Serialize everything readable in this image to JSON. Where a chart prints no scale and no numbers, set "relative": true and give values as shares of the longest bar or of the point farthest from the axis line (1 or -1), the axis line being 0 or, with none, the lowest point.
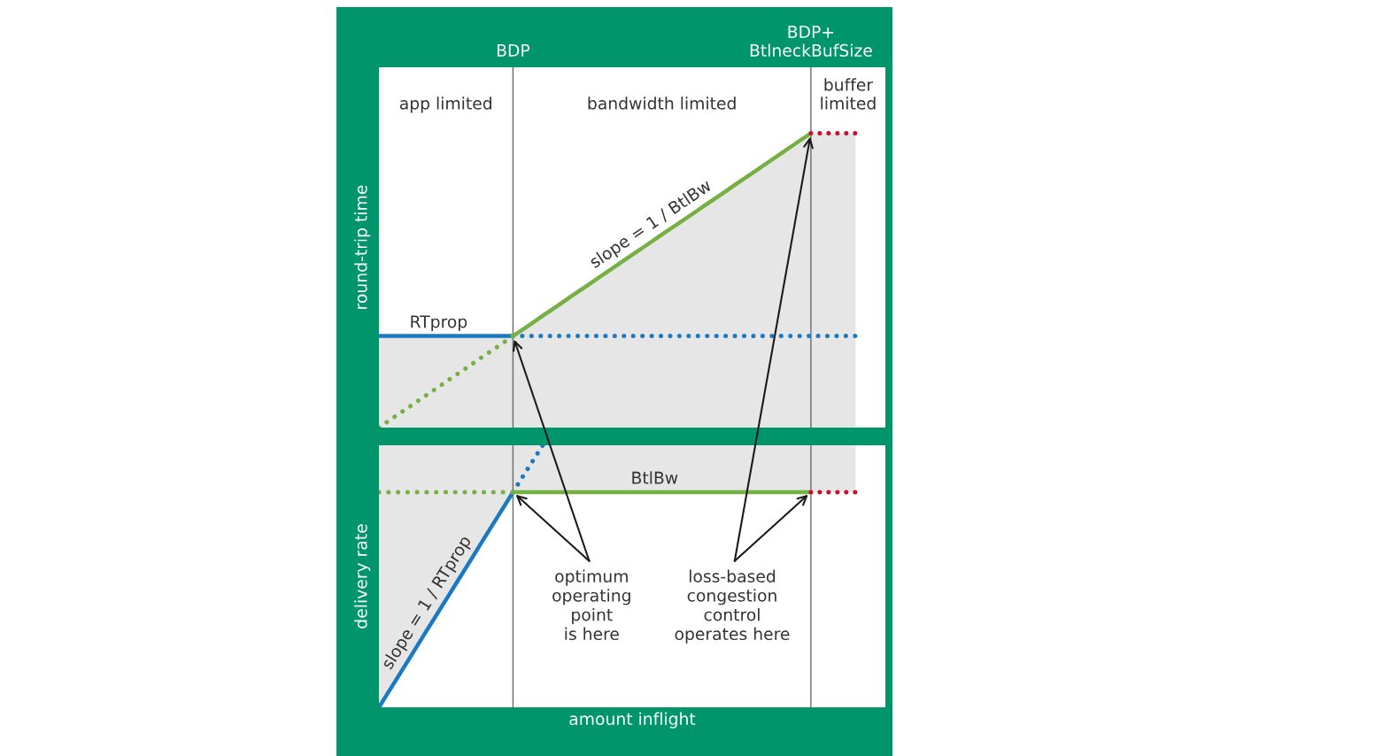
{
  "chart_data": [
    {
      "type": "line",
      "ylabel": "round-trip time",
      "relative": true,
      "tick_labels": "x",
      "grid": "x",
      "categories": [
        null,
        null,
        null,
        null,
        null,
        null,
        null,
        null,
        null,
        "BDP",
        null,
        null,
        null,
        null,
        null,
        null,
        null,
        null,
        null,
        null,
        null,
        null,
        null,
        null,
        null,
        null,
        null,
        null,
        null,
        "BDP+\nBtlneckBufSize",
        null,
        null,
        null,
        null,
        null
      ],
      "series": [
        {
          "name": "RTprop",
          "color": "#1a79c0",
          "line_style": "solid",
          "values": [
            0.311,
            0.311,
            0.311,
            0.311,
            0.311,
            0.311,
            0.311,
            0.311,
            0.311,
            0.311,
            null,
            null,
            null,
            null,
            null,
            null,
            null,
            null,
            null,
            null,
            null,
            null,
            null,
            null,
            null,
            null,
            null,
            null,
            null,
            null,
            null,
            null,
            null,
            null,
            null
          ],
          "lower": [
            0,
            0,
            0,
            0,
            0,
            0,
            0,
            0,
            0,
            0,
            null,
            null,
            null,
            null,
            null,
            null,
            null,
            null,
            null,
            null,
            null,
            null,
            null,
            null,
            null,
            null,
            null,
            null,
            null,
            null,
            null,
            null,
            null,
            null,
            null
          ],
          "upper": [
            0.311,
            0.311,
            0.311,
            0.311,
            0.311,
            0.311,
            0.311,
            0.311,
            0.311,
            0.311,
            null,
            null,
            null,
            null,
            null,
            null,
            null,
            null,
            null,
            null,
            null,
            null,
            null,
            null,
            null,
            null,
            null,
            null,
            null,
            null,
            null,
            null,
            null,
            null,
            null
          ]
        },
        {
          "color": "#1a79c0",
          "line_style": "dotted",
          "values": [
            null,
            null,
            null,
            null,
            null,
            null,
            null,
            null,
            null,
            0.311,
            0.311,
            0.311,
            0.311,
            0.311,
            0.311,
            0.311,
            0.311,
            0.311,
            0.311,
            0.311,
            0.311,
            0.311,
            0.311,
            0.311,
            0.311,
            0.311,
            0.311,
            0.311,
            0.311,
            0.311,
            0.311,
            0.311,
            0.311,
            null,
            null
          ]
        },
        {
          "color": "#76b043",
          "line_style": "dotted",
          "values": [
            0,
            0.035,
            0.069,
            0.104,
            0.138,
            0.173,
            0.207,
            0.242,
            0.276,
            0.311,
            null,
            null,
            null,
            null,
            null,
            null,
            null,
            null,
            null,
            null,
            null,
            null,
            null,
            null,
            null,
            null,
            null,
            null,
            null,
            null,
            null,
            null,
            null,
            null,
            null
          ]
        },
        {
          "color": "#76b043",
          "line_style": "solid",
          "values": [
            null,
            null,
            null,
            null,
            null,
            null,
            null,
            null,
            null,
            0.311,
            0.345,
            0.38,
            0.414,
            0.449,
            0.483,
            0.518,
            0.552,
            0.587,
            0.621,
            0.656,
            0.69,
            0.724,
            0.759,
            0.793,
            0.828,
            0.862,
            0.897,
            0.931,
            0.966,
            1,
            null,
            null,
            null,
            null,
            null
          ],
          "lower": [
            null,
            null,
            null,
            null,
            null,
            null,
            null,
            null,
            null,
            0,
            0,
            0,
            0,
            0,
            0,
            0,
            0,
            0,
            0,
            0,
            0,
            0,
            0,
            0,
            0,
            0,
            0,
            0,
            0,
            0,
            null,
            null,
            null,
            null,
            null
          ],
          "upper": [
            null,
            null,
            null,
            null,
            null,
            null,
            null,
            null,
            null,
            0.311,
            0.345,
            0.38,
            0.414,
            0.449,
            0.483,
            0.518,
            0.552,
            0.587,
            0.621,
            0.656,
            0.69,
            0.724,
            0.759,
            0.793,
            0.828,
            0.862,
            0.897,
            0.931,
            0.966,
            1,
            null,
            null,
            null,
            null,
            null
          ]
        },
        {
          "color": "#c8102e",
          "line_style": "dotted",
          "values": [
            null,
            null,
            null,
            null,
            null,
            null,
            null,
            null,
            null,
            null,
            null,
            null,
            null,
            null,
            null,
            null,
            null,
            null,
            null,
            null,
            null,
            null,
            null,
            null,
            null,
            null,
            null,
            null,
            null,
            1,
            1,
            1,
            1,
            null,
            null
          ],
          "lower": [
            null,
            null,
            null,
            null,
            null,
            null,
            null,
            null,
            null,
            null,
            null,
            null,
            null,
            null,
            null,
            null,
            null,
            null,
            null,
            null,
            null,
            null,
            null,
            null,
            null,
            null,
            null,
            null,
            null,
            0,
            0,
            0,
            0,
            null,
            null
          ],
          "upper": [
            null,
            null,
            null,
            null,
            null,
            null,
            null,
            null,
            null,
            null,
            null,
            null,
            null,
            null,
            null,
            null,
            null,
            null,
            null,
            null,
            null,
            null,
            null,
            null,
            null,
            null,
            null,
            null,
            null,
            1,
            1,
            1,
            1,
            null,
            null
          ]
        }
      ],
      "annotations": [
        "app limited",
        "bandwidth limited",
        "buffer\nlimited",
        "slope = 1 / BtlBw",
        {
          "text": "optimum\noperating\npoint\nis here",
          "x": "BDP",
          "y": 0.311
        },
        {
          "text": "loss-based\ncongestion\ncontrol\noperates here",
          "x": "BDP+\nBtlneckBufSize",
          "y": 1
        }
      ]
    },
    {
      "type": "line",
      "ylabel": "delivery rate",
      "xlabel": "amount inflight",
      "relative": true,
      "tick_labels": false,
      "grid": "x",
      "categories": [
        null,
        null,
        null,
        null,
        null,
        null,
        null,
        null,
        null,
        "BDP",
        null,
        null,
        null,
        null,
        null,
        null,
        null,
        null,
        null,
        null,
        null,
        null,
        null,
        null,
        null,
        null,
        null,
        null,
        null,
        "BDP+\nBtlneckBufSize",
        null,
        null,
        null,
        null,
        null
      ],
      "series": [
        {
          "color": "#1a79c0",
          "line_style": "solid",
          "values": [
            0,
            0.091,
            0.182,
            0.274,
            0.365,
            0.456,
            0.547,
            0.639,
            0.73,
            0.821,
            null,
            null,
            null,
            null,
            null,
            null,
            null,
            null,
            null,
            null,
            null,
            null,
            null,
            null,
            null,
            null,
            null,
            null,
            null,
            null,
            null,
            null,
            null,
            null,
            null
          ],
          "lower": [
            0,
            0.091,
            0.182,
            0.274,
            0.365,
            0.456,
            0.547,
            0.639,
            0.73,
            0.821,
            null,
            null,
            null,
            null,
            null,
            null,
            null,
            null,
            null,
            null,
            null,
            null,
            null,
            null,
            null,
            null,
            null,
            null,
            null,
            null,
            null,
            null,
            null,
            null,
            null
          ],
          "upper": [
            1,
            1,
            1,
            1,
            1,
            1,
            1,
            1,
            1,
            1,
            null,
            null,
            null,
            null,
            null,
            null,
            null,
            null,
            null,
            null,
            null,
            null,
            null,
            null,
            null,
            null,
            null,
            null,
            null,
            null,
            null,
            null,
            null,
            null,
            null
          ]
        },
        {
          "color": "#1a79c0",
          "line_style": "dotted",
          "values": [
            null,
            null,
            null,
            null,
            null,
            null,
            null,
            null,
            null,
            0.821,
            0.911,
            1,
            null,
            null,
            null,
            null,
            null,
            null,
            null,
            null,
            null,
            null,
            null,
            null,
            null,
            null,
            null,
            null,
            null,
            null,
            null,
            null,
            null,
            null,
            null
          ]
        },
        {
          "color": "#76b043",
          "line_style": "dotted",
          "values": [
            0.821,
            0.821,
            0.821,
            0.821,
            0.821,
            0.821,
            0.821,
            0.821,
            0.821,
            0.821,
            null,
            null,
            null,
            null,
            null,
            null,
            null,
            null,
            null,
            null,
            null,
            null,
            null,
            null,
            null,
            null,
            null,
            null,
            null,
            null,
            null,
            null,
            null,
            null,
            null
          ]
        },
        {
          "name": "BtlBw",
          "color": "#76b043",
          "line_style": "solid",
          "values": [
            null,
            null,
            null,
            null,
            null,
            null,
            null,
            null,
            null,
            0.821,
            0.821,
            0.821,
            0.821,
            0.821,
            0.821,
            0.821,
            0.821,
            0.821,
            0.821,
            0.821,
            0.821,
            0.821,
            0.821,
            0.821,
            0.821,
            0.821,
            0.821,
            0.821,
            0.821,
            0.821,
            null,
            null,
            null,
            null,
            null
          ],
          "lower": [
            null,
            null,
            null,
            null,
            null,
            null,
            null,
            null,
            null,
            0.821,
            0.821,
            0.821,
            0.821,
            0.821,
            0.821,
            0.821,
            0.821,
            0.821,
            0.821,
            0.821,
            0.821,
            0.821,
            0.821,
            0.821,
            0.821,
            0.821,
            0.821,
            0.821,
            0.821,
            0.821,
            null,
            null,
            null,
            null,
            null
          ],
          "upper": [
            null,
            null,
            null,
            null,
            null,
            null,
            null,
            null,
            null,
            1,
            1,
            1,
            1,
            1,
            1,
            1,
            1,
            1,
            1,
            1,
            1,
            1,
            1,
            1,
            1,
            1,
            1,
            1,
            1,
            1,
            null,
            null,
            null,
            null,
            null
          ]
        },
        {
          "color": "#c8102e",
          "line_style": "dotted",
          "values": [
            null,
            null,
            null,
            null,
            null,
            null,
            null,
            null,
            null,
            null,
            null,
            null,
            null,
            null,
            null,
            null,
            null,
            null,
            null,
            null,
            null,
            null,
            null,
            null,
            null,
            null,
            null,
            null,
            null,
            0.821,
            0.821,
            0.821,
            0.821,
            null,
            null
          ],
          "lower": [
            null,
            null,
            null,
            null,
            null,
            null,
            null,
            null,
            null,
            null,
            null,
            null,
            null,
            null,
            null,
            null,
            null,
            null,
            null,
            null,
            null,
            null,
            null,
            null,
            null,
            null,
            null,
            null,
            null,
            0.821,
            0.821,
            0.821,
            0.821,
            null,
            null
          ],
          "upper": [
            null,
            null,
            null,
            null,
            null,
            null,
            null,
            null,
            null,
            null,
            null,
            null,
            null,
            null,
            null,
            null,
            null,
            null,
            null,
            null,
            null,
            null,
            null,
            null,
            null,
            null,
            null,
            null,
            null,
            1,
            1,
            1,
            1,
            null,
            null
          ]
        }
      ],
      "annotations": [
        "slope = 1 / RTprop"
      ]
    }
  ]
}
